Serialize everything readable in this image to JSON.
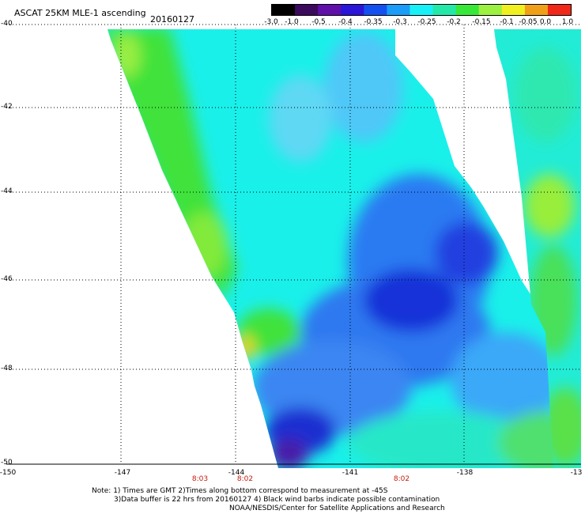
{
  "header": {
    "title": "ASCAT 25KM MLE-1 ascending",
    "date": "20160127"
  },
  "colorbar": {
    "labels": [
      "-3.0",
      "-1.0",
      "-0.5",
      "-0.4",
      "-0.35",
      "-0.3",
      "-0.25",
      "-0.2",
      "-0.15",
      "-0.1",
      "-0.05",
      "0.0",
      "1.0"
    ],
    "colors": [
      "#000000",
      "#3c0a5c",
      "#5e10a8",
      "#2a16d8",
      "#1450f0",
      "#1a9cf8",
      "#18f0f8",
      "#24e8a8",
      "#38e838",
      "#9cf040",
      "#f0f020",
      "#f0a018",
      "#f02818"
    ]
  },
  "map": {
    "lat_labels": [
      "-40",
      "-42",
      "-44",
      "-46",
      "-48",
      "-50"
    ],
    "lon_labels": [
      "-150",
      "-147",
      "-144",
      "-141",
      "-138",
      "-13"
    ],
    "pass_times": [
      "8:03",
      "8:02",
      "8:02"
    ]
  },
  "footer": {
    "note_line1": "Note: 1) Times are GMT 2)Times along bottom correspond to measurement at -45S",
    "note_line2": "3)Data buffer is 22 hrs from 20160127 4) Black wind barbs indicate possible contamination",
    "credit": "NOAA/NESDIS/Center for Satellite Applications and Research"
  }
}
